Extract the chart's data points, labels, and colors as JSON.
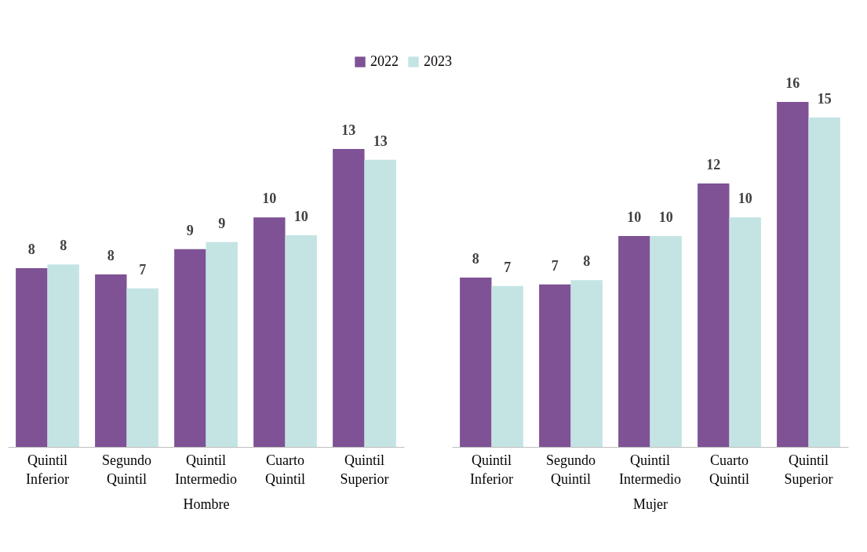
{
  "chart_data": [
    {
      "type": "bar",
      "xlabel": "Hombre",
      "categories": [
        "Quintil Inferior",
        "Segundo Quintil",
        "Quintil Intermedio",
        "Cuarto Quintil",
        "Quintil Superior"
      ],
      "legend": "top",
      "series": [
        {
          "name": "2022",
          "color": "#7e5295",
          "values": [
            8.06,
            7.78,
            8.92,
            10.35,
            13.44
          ],
          "value_labels": [
            "8",
            "8",
            "9",
            "10",
            "13"
          ]
        },
        {
          "name": "2023",
          "color": "#c4e4e4",
          "values": [
            8.23,
            7.15,
            9.24,
            9.55,
            12.95
          ],
          "value_labels": [
            "8",
            "7",
            "9",
            "10",
            "13"
          ]
        }
      ]
    },
    {
      "type": "bar",
      "xlabel": "Mujer",
      "categories": [
        "Quintil Inferior",
        "Segundo Quintil",
        "Quintil Intermedio",
        "Cuarto Quintil",
        "Quintil Superior"
      ],
      "series": [
        {
          "name": "2022",
          "color": "#7e5295",
          "values": [
            7.64,
            7.33,
            9.51,
            11.88,
            15.56
          ],
          "value_labels": [
            "8",
            "7",
            "10",
            "12",
            "16"
          ]
        },
        {
          "name": "2023",
          "color": "#c4e4e4",
          "values": [
            7.26,
            7.52,
            9.51,
            10.35,
            14.86
          ],
          "value_labels": [
            "7",
            "8",
            "10",
            "10",
            "15"
          ]
        }
      ]
    }
  ]
}
